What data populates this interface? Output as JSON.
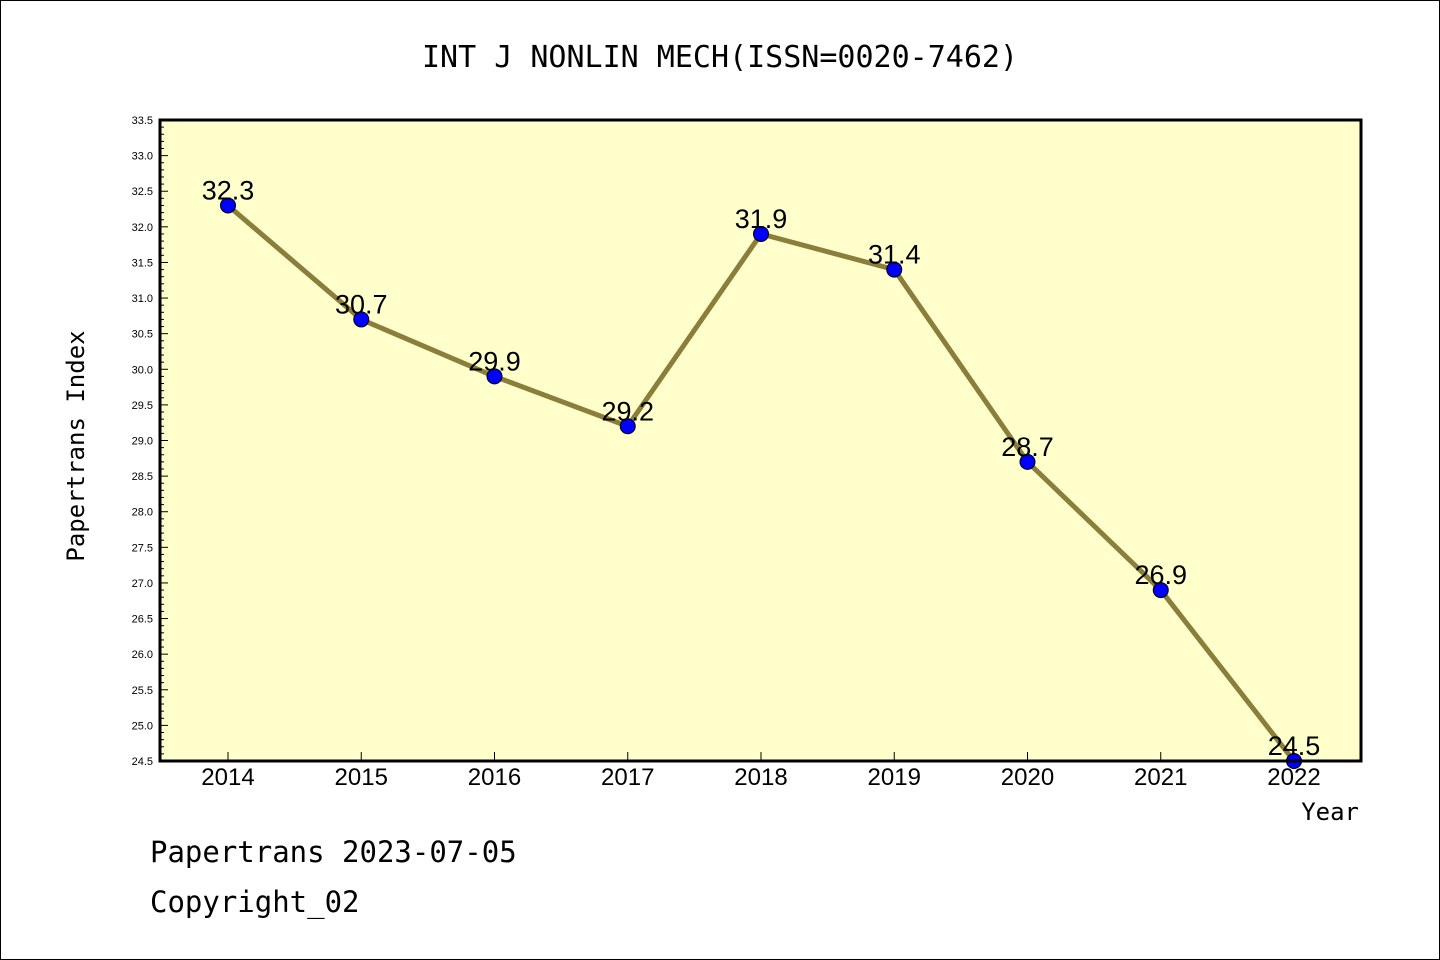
{
  "chart_data": {
    "type": "line",
    "title": "INT J NONLIN MECH(ISSN=0020-7462)",
    "xlabel": "Year",
    "ylabel": "Papertrans Index",
    "categories": [
      "2014",
      "2015",
      "2016",
      "2017",
      "2018",
      "2019",
      "2020",
      "2021",
      "2022"
    ],
    "series": [
      {
        "values": [
          32.3,
          30.7,
          29.9,
          29.2,
          31.9,
          31.4,
          28.7,
          26.9,
          24.5
        ],
        "data_labels": [
          "32.3",
          "30.7",
          "29.9",
          "29.2",
          "31.9",
          "31.4",
          "28.7",
          "26.9",
          "24.5"
        ]
      }
    ],
    "ylim": [
      24.5,
      33.5
    ],
    "yticks": [
      "24.5",
      "25.0",
      "25.5",
      "26.0",
      "26.5",
      "27.0",
      "27.5",
      "28.0",
      "28.5",
      "29.0",
      "29.5",
      "30.0",
      "30.5",
      "31.0",
      "31.5",
      "32.0",
      "32.5",
      "33.0",
      "33.5"
    ],
    "grid": false,
    "colors": {
      "line": "#8b7d3a",
      "marker": "#0000ff",
      "plot_background": "#ffffcc"
    }
  },
  "footer": {
    "line1": "Papertrans 2023-07-05",
    "line2": "Copyright_02"
  }
}
